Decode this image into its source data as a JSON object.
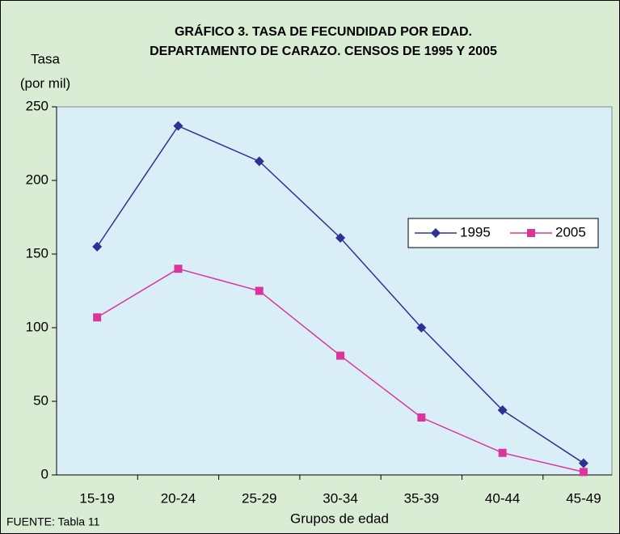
{
  "chart_data": {
    "type": "line",
    "title": "GRÁFICO 3. TASA DE FECUNDIDAD POR EDAD.",
    "subtitle": "DEPARTAMENTO DE CARAZO. CENSOS DE 1995 Y 2005",
    "ylabel": [
      "Tasa",
      "(por mil)"
    ],
    "xlabel": "Grupos de edad",
    "source": "FUENTE: Tabla 11",
    "categories": [
      "15-19",
      "20-24",
      "25-29",
      "30-34",
      "35-39",
      "40-44",
      "45-49"
    ],
    "series": [
      {
        "name": "1995",
        "color": "#2e3192",
        "marker": "diamond",
        "values": [
          155,
          237,
          213,
          161,
          100,
          44,
          8
        ]
      },
      {
        "name": "2005",
        "color": "#d9359b",
        "marker": "square",
        "values": [
          107,
          140,
          125,
          81,
          39,
          15,
          2
        ]
      }
    ],
    "ylim": [
      0,
      250
    ],
    "yticks": [
      0,
      50,
      100,
      150,
      200,
      250
    ],
    "grid": false,
    "legend": "right"
  }
}
